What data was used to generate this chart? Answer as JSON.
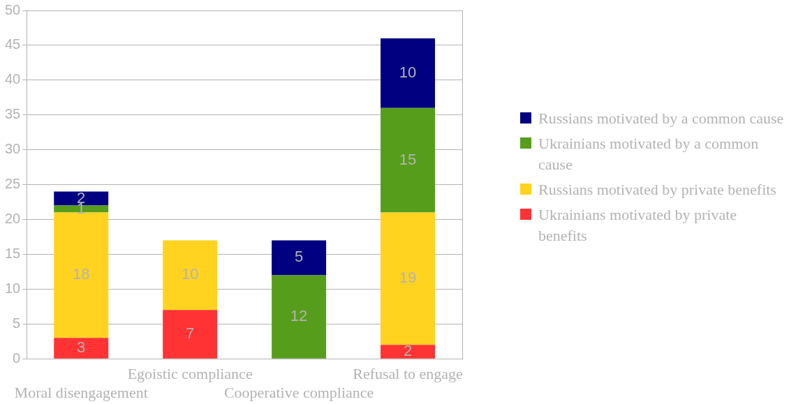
{
  "chart_data": {
    "type": "bar",
    "stacked": true,
    "categories": [
      "Moral disengagement",
      "Egoistic compliance",
      "Cooperative compliance",
      "Refusal to engage"
    ],
    "series": [
      {
        "name": "Ukrainians motivated by private benefits",
        "color": "#ff3333",
        "values": [
          3,
          7,
          null,
          2
        ]
      },
      {
        "name": "Russians motivated by private benefits",
        "color": "#ffd320",
        "values": [
          18,
          10,
          null,
          19
        ]
      },
      {
        "name": "Ukrainians motivated by a common cause",
        "color": "#579d1c",
        "values": [
          1,
          null,
          12,
          15
        ]
      },
      {
        "name": "Russians motivated by a common cause",
        "color": "#000080",
        "values": [
          2,
          null,
          5,
          10
        ]
      }
    ],
    "ylim": [
      0,
      50
    ],
    "yticks": [
      0,
      5,
      10,
      15,
      20,
      25,
      30,
      35,
      40,
      45,
      50
    ],
    "grid": "y",
    "legend": "right",
    "data_labels": true
  }
}
